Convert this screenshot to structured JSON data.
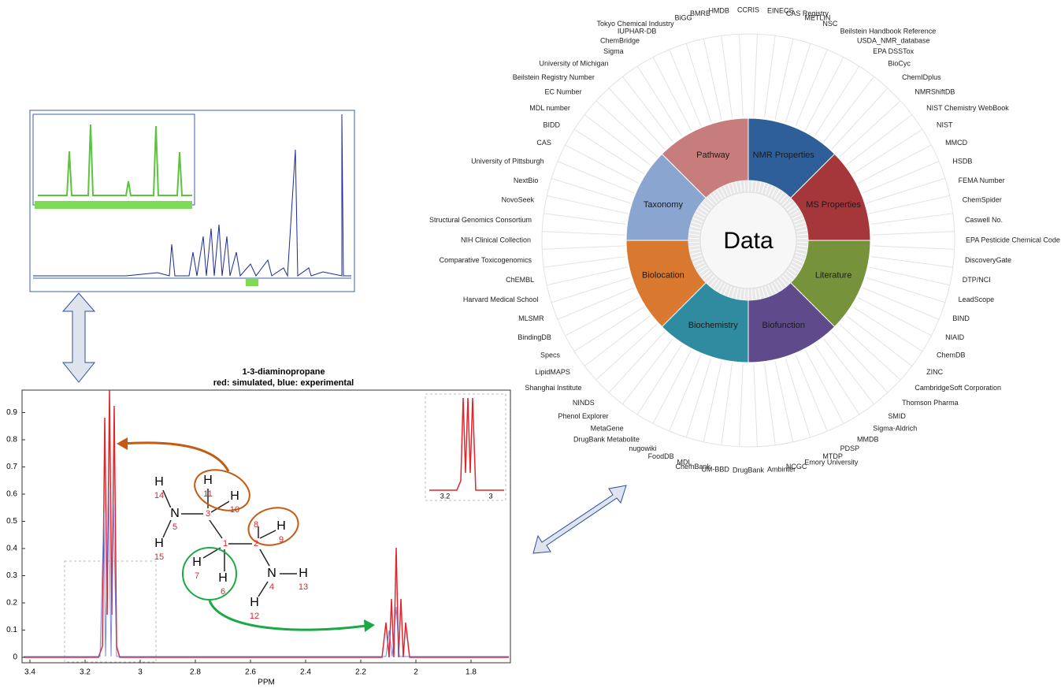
{
  "spectrum": {
    "title": "1-3-diaminopropane",
    "subtitle": "red: simulated, blue: experimental",
    "x_label": "PPM",
    "xticks": [
      "3.4",
      "3.2",
      "3",
      "2.8",
      "2.6",
      "2.4",
      "2.2",
      "2",
      "1.8"
    ],
    "yticks": [
      "0",
      "0.1",
      "0.2",
      "0.3",
      "0.4",
      "0.5",
      "0.6",
      "0.7",
      "0.8",
      "0.9"
    ],
    "inset_xticks": [
      "3.2",
      "3"
    ]
  },
  "molecule": {
    "atoms": [
      {
        "symbol": "H",
        "number": "14"
      },
      {
        "symbol": "N",
        "number": "5"
      },
      {
        "symbol": "H",
        "number": "15"
      },
      {
        "number": "3"
      },
      {
        "symbol": "H",
        "number": "11"
      },
      {
        "symbol": "H",
        "number": "10"
      },
      {
        "number": "1"
      },
      {
        "number": "2"
      },
      {
        "number": "8"
      },
      {
        "symbol": "H",
        "number": "9"
      },
      {
        "symbol": "H",
        "number": "7"
      },
      {
        "symbol": "H",
        "number": "6"
      },
      {
        "symbol": "N",
        "number": "4"
      },
      {
        "symbol": "H",
        "number": "13"
      },
      {
        "symbol": "H",
        "number": "12"
      }
    ]
  },
  "wheel": {
    "center": "Data",
    "segments": [
      "NMR Properties",
      "MS Properties",
      "Literature",
      "Biofunction",
      "Biochemistry",
      "Biolocation",
      "Taxonomy",
      "Pathway"
    ],
    "databases": [
      "CCRIS",
      "EINECS",
      "CAS Registry",
      "METLIN",
      "NSC",
      "Beilstein Handbook Reference",
      "USDA_NMR_database",
      "EPA DSSTox",
      "BioCyc",
      "ChemIDplus",
      "NMRShiftDB",
      "NIST Chemistry WebBook",
      "NIST",
      "MMCD",
      "HSDB",
      "FEMA Number",
      "ChemSpider",
      "Caswell No.",
      "EPA Pesticide Chemical Code",
      "DiscoveryGate",
      "DTP/NCI",
      "LeadScope",
      "BIND",
      "NIAID",
      "ChemDB",
      "ZINC",
      "CambridgeSoft Corporation",
      "Thomson Pharma",
      "SMID",
      "Sigma-Aldrich",
      "MMDB",
      "PDSP",
      "MTDP",
      "Emory University",
      "NCGC",
      "Ambinter",
      "DrugBank",
      "UM-BBD",
      "ChemBank",
      "MDL",
      "FoodDB",
      "nugowiki",
      "DrugBank Metabolite",
      "MetaGene",
      "Phenol Explorer",
      "NINDS",
      "Shanghai Institute",
      "LipidMAPS",
      "Specs",
      "BindingDB",
      "MLSMR",
      "Harvard Medical School",
      "ChEMBL",
      "Comparative Toxicogenomics",
      "NIH Clinical Collection",
      "Structural Genomics Consortium",
      "NovoSeek",
      "NextBio",
      "University of Pittsburgh",
      "CAS",
      "BIDD",
      "MDL number",
      "EC Number",
      "Beilstein Registry Number",
      "University of Michigan",
      "Sigma",
      "ChemBridge",
      "IUPHAR-DB",
      "Tokyo Chemical Industry",
      "BiGG",
      "BMRB",
      "HMDB"
    ]
  }
}
